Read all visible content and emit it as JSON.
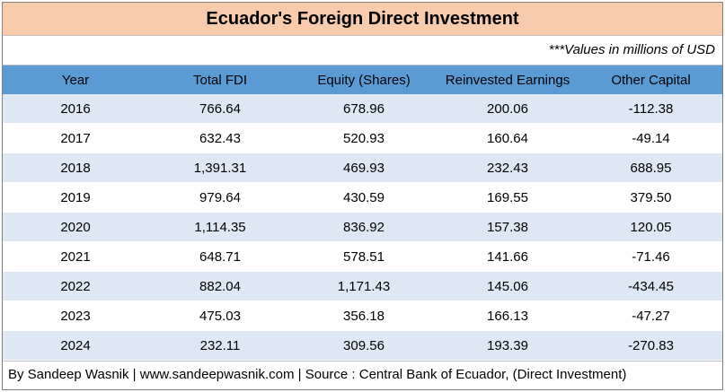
{
  "header": {
    "title": "Ecuador's Foreign Direct Investment",
    "note": "***Values in millions of USD"
  },
  "table": {
    "columns": [
      "Year",
      "Total FDI",
      "Equity (Shares)",
      "Reinvested Earnings",
      "Other Capital"
    ],
    "rows": [
      [
        "2016",
        "766.64",
        "678.96",
        "200.06",
        "-112.38"
      ],
      [
        "2017",
        "632.43",
        "520.93",
        "160.64",
        "-49.14"
      ],
      [
        "2018",
        "1,391.31",
        "469.93",
        "232.43",
        "688.95"
      ],
      [
        "2019",
        "979.64",
        "430.59",
        "169.55",
        "379.50"
      ],
      [
        "2020",
        "1,114.35",
        "836.92",
        "157.38",
        "120.05"
      ],
      [
        "2021",
        "648.71",
        "578.51",
        "141.66",
        "-71.46"
      ],
      [
        "2022",
        "882.04",
        "1,171.43",
        "145.06",
        "-434.45"
      ],
      [
        "2023",
        "475.03",
        "356.18",
        "166.13",
        "-47.27"
      ],
      [
        "2024",
        "232.11",
        "309.56",
        "193.39",
        "-270.83"
      ]
    ]
  },
  "footer": "By Sandeep Wasnik | www.sandeepwasnik.com | Source : Central Bank of Ecuador, (Direct Investment)"
}
